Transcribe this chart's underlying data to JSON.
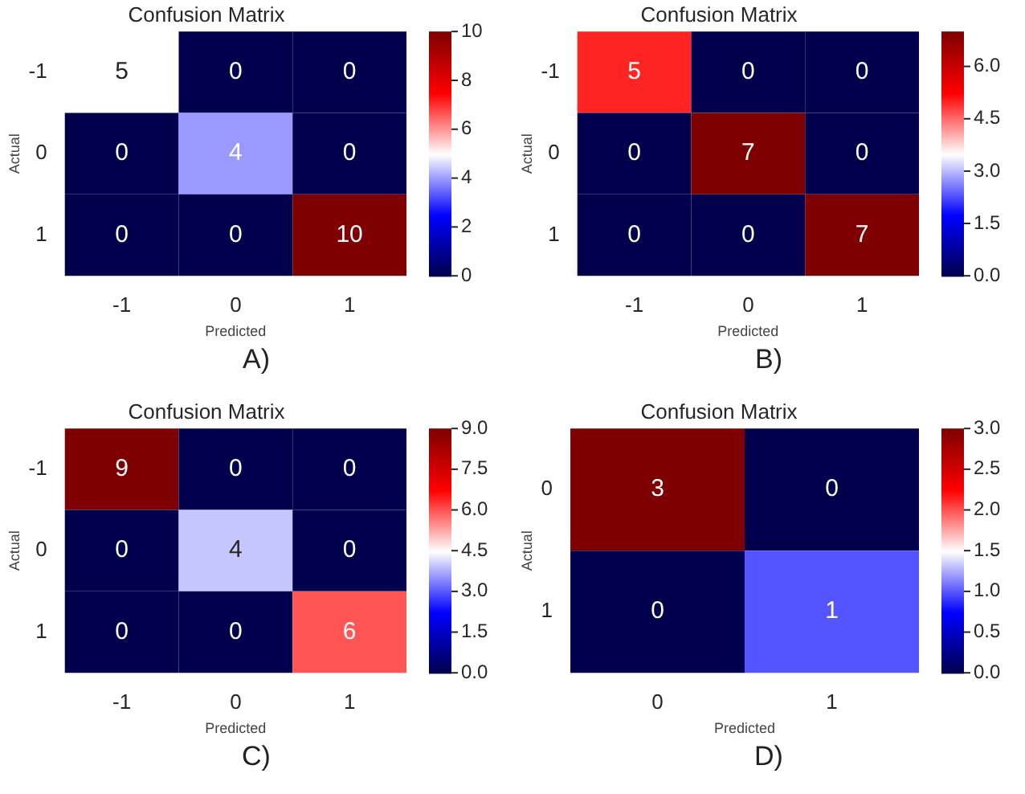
{
  "chart_data": [
    {
      "type": "heatmap",
      "title": "Confusion Matrix",
      "xlabel": "Predicted",
      "ylabel": "Actual",
      "categories": [
        "-1",
        "0",
        "1"
      ],
      "y_categories": [
        "-1",
        "0",
        "1"
      ],
      "cells": [
        [
          5,
          0,
          0
        ],
        [
          0,
          4,
          0
        ],
        [
          0,
          0,
          10
        ]
      ],
      "data_labels": true,
      "clim": [
        0,
        10
      ],
      "cticks": [
        0,
        2,
        4,
        6,
        8,
        10
      ],
      "annotations": [
        "A)"
      ]
    },
    {
      "type": "heatmap",
      "title": "Confusion Matrix",
      "xlabel": "Predicted",
      "ylabel": "Actual",
      "categories": [
        "-1",
        "0",
        "1"
      ],
      "y_categories": [
        "-1",
        "0",
        "1"
      ],
      "cells": [
        [
          5,
          0,
          0
        ],
        [
          0,
          7,
          0
        ],
        [
          0,
          0,
          7
        ]
      ],
      "data_labels": true,
      "clim": [
        0,
        7
      ],
      "cticks": [
        {
          "value": 0,
          "label": "0.0"
        },
        1.5,
        {
          "value": 3,
          "label": "3.0"
        },
        4.5,
        {
          "value": 6,
          "label": "6.0"
        }
      ],
      "annotations": [
        "B)"
      ]
    },
    {
      "type": "heatmap",
      "title": "Confusion Matrix",
      "xlabel": "Predicted",
      "ylabel": "Actual",
      "categories": [
        "-1",
        "0",
        "1"
      ],
      "y_categories": [
        "-1",
        "0",
        "1"
      ],
      "cells": [
        [
          9,
          0,
          0
        ],
        [
          0,
          4,
          0
        ],
        [
          0,
          0,
          6
        ]
      ],
      "data_labels": true,
      "clim": [
        0,
        9
      ],
      "cticks": [
        {
          "value": 0,
          "label": "0.0"
        },
        1.5,
        {
          "value": 3,
          "label": "3.0"
        },
        4.5,
        {
          "value": 6,
          "label": "6.0"
        },
        7.5,
        {
          "value": 9,
          "label": "9.0"
        }
      ],
      "annotations": [
        "C)"
      ]
    },
    {
      "type": "heatmap",
      "title": "Confusion Matrix",
      "xlabel": "Predicted",
      "ylabel": "Actual",
      "categories": [
        "0",
        "1"
      ],
      "y_categories": [
        "0",
        "1"
      ],
      "cells": [
        [
          3,
          0
        ],
        [
          0,
          1
        ]
      ],
      "data_labels": true,
      "clim": [
        0,
        3
      ],
      "cticks": [
        {
          "value": 0,
          "label": "0.0"
        },
        0.5,
        {
          "value": 1,
          "label": "1.0"
        },
        1.5,
        {
          "value": 2,
          "label": "2.0"
        },
        2.5,
        {
          "value": 3,
          "label": "3.0"
        }
      ],
      "annotations": [
        "D)"
      ]
    }
  ]
}
